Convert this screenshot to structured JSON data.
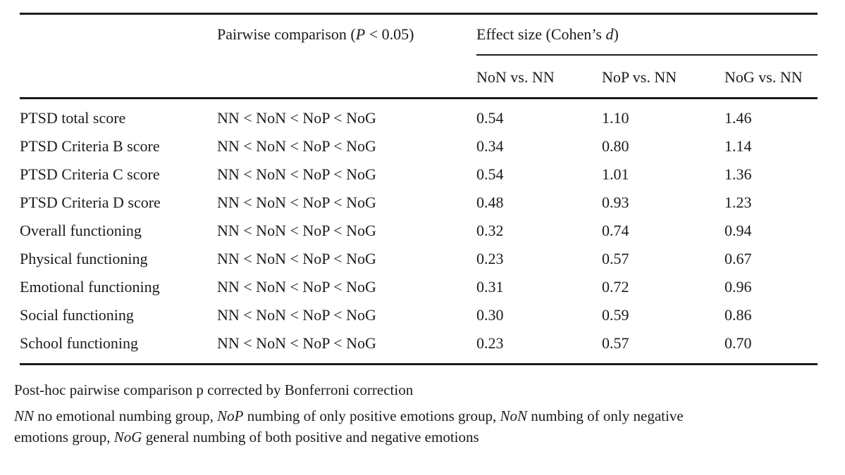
{
  "table": {
    "header": {
      "pairwise": {
        "prefix": "Pairwise comparison (",
        "stat": "P",
        "suffix": " < 0.05)"
      },
      "effect": {
        "prefix": "Effect size (Cohen’s ",
        "stat": "d",
        "suffix": ")"
      },
      "subcols": [
        "NoN vs. NN",
        "NoP vs. NN",
        "NoG vs. NN"
      ]
    },
    "rows": [
      {
        "label": "PTSD total score",
        "pairwise": "NN < NoN < NoP < NoG",
        "non_nn": "0.54",
        "nop_nn": "1.10",
        "nog_nn": "1.46"
      },
      {
        "label": "PTSD Criteria B score",
        "pairwise": "NN < NoN < NoP < NoG",
        "non_nn": "0.34",
        "nop_nn": "0.80",
        "nog_nn": "1.14"
      },
      {
        "label": "PTSD Criteria C score",
        "pairwise": "NN < NoN < NoP < NoG",
        "non_nn": "0.54",
        "nop_nn": "1.01",
        "nog_nn": "1.36"
      },
      {
        "label": "PTSD Criteria D score",
        "pairwise": "NN < NoN < NoP < NoG",
        "non_nn": "0.48",
        "nop_nn": "0.93",
        "nog_nn": "1.23"
      },
      {
        "label": "Overall functioning",
        "pairwise": "NN < NoN < NoP < NoG",
        "non_nn": "0.32",
        "nop_nn": "0.74",
        "nog_nn": "0.94"
      },
      {
        "label": "Physical functioning",
        "pairwise": "NN < NoN < NoP < NoG",
        "non_nn": "0.23",
        "nop_nn": "0.57",
        "nog_nn": "0.67"
      },
      {
        "label": "Emotional functioning",
        "pairwise": "NN < NoN < NoP < NoG",
        "non_nn": "0.31",
        "nop_nn": "0.72",
        "nog_nn": "0.96"
      },
      {
        "label": "Social functioning",
        "pairwise": "NN < NoN < NoP < NoG",
        "non_nn": "0.30",
        "nop_nn": "0.59",
        "nog_nn": "0.86"
      },
      {
        "label": "School functioning",
        "pairwise": "NN < NoN < NoP < NoG",
        "non_nn": "0.23",
        "nop_nn": "0.57",
        "nog_nn": "0.70"
      }
    ]
  },
  "footnotes": {
    "note1": "Post-hoc pairwise comparison p corrected by Bonferroni correction",
    "note2_line1": [
      "NN",
      " no emotional numbing group, ",
      "NoP",
      " numbing of only positive emotions group, ",
      "NoN",
      " numbing of only negative"
    ],
    "note2_line2": [
      "emotions group, ",
      "NoG",
      " general numbing of both positive and negative emotions"
    ]
  },
  "colors": {
    "text": "#1b1b1b",
    "rule": "#1c1c1c",
    "background": "#ffffff"
  }
}
